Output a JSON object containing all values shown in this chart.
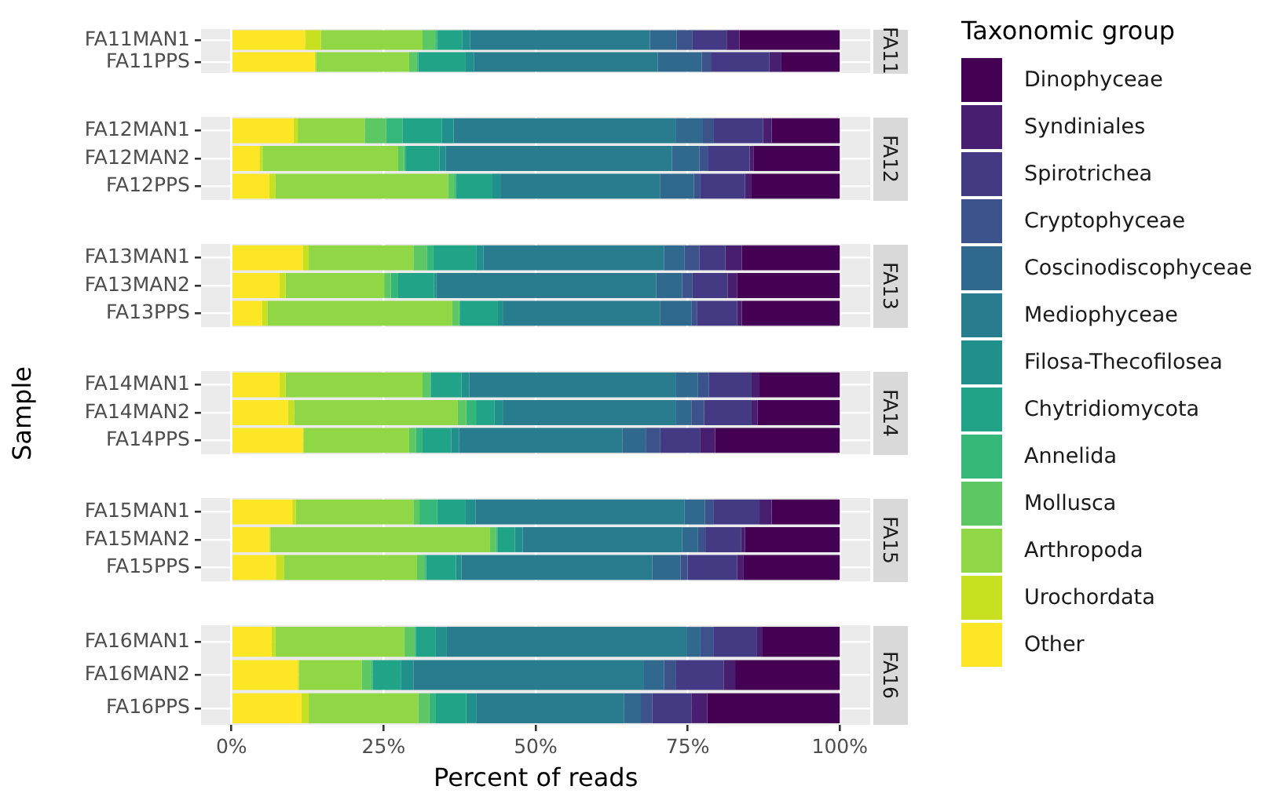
{
  "chart_data": [
    {
      "type": "bar",
      "orientation": "horizontal",
      "stacked": true,
      "title": "FA11",
      "legend": "right",
      "legend_title": "Taxonomic group",
      "grid": true,
      "tick_labels": "y",
      "xlim": [
        -5,
        105
      ],
      "xticks": [
        {
          "value": 0,
          "label": null
        },
        {
          "value": 25,
          "label": null
        },
        {
          "value": 50,
          "label": null
        },
        {
          "value": 75,
          "label": null
        },
        {
          "value": 100,
          "label": null
        }
      ],
      "categories": [
        "FA11MAN1",
        "FA11PPS"
      ],
      "series": [
        {
          "name": "Other",
          "color": "#fde725",
          "values": [
            12.1,
            13.7
          ]
        },
        {
          "name": "Urochordata",
          "color": "#c7e020",
          "values": [
            2.6,
            0.2
          ]
        },
        {
          "name": "Arthropoda",
          "color": "#8fd744",
          "values": [
            16.7,
            15.3
          ]
        },
        {
          "name": "Mollusca",
          "color": "#5dc863",
          "values": [
            2.1,
            1.3
          ]
        },
        {
          "name": "Annelida",
          "color": "#35b779",
          "values": [
            0.3,
            0.2
          ]
        },
        {
          "name": "Chytridiomycota",
          "color": "#20a386",
          "values": [
            4.1,
            7.7
          ]
        },
        {
          "name": "Filosa-Thecofilosea",
          "color": "#21908c",
          "values": [
            1.3,
            1.5
          ]
        },
        {
          "name": "Mediophyceae",
          "color": "#287c8e",
          "values": [
            29.6,
            30.2
          ]
        },
        {
          "name": "Coscinodiscophyceae",
          "color": "#31688e",
          "values": [
            4.4,
            7.2
          ]
        },
        {
          "name": "Cryptophyceae",
          "color": "#3b528b",
          "values": [
            2.6,
            1.5
          ]
        },
        {
          "name": "Spirotrichea",
          "color": "#443a83",
          "values": [
            5.6,
            9.6
          ]
        },
        {
          "name": "Syndiniales",
          "color": "#481f70",
          "values": [
            2.1,
            2.0
          ]
        },
        {
          "name": "Dinophyceae",
          "color": "#440154",
          "values": [
            16.5,
            9.6
          ]
        }
      ]
    },
    {
      "type": "bar",
      "orientation": "horizontal",
      "stacked": true,
      "title": "FA12",
      "grid": true,
      "tick_labels": "y",
      "xlim": [
        -5,
        105
      ],
      "xticks": [
        {
          "value": 0,
          "label": null
        },
        {
          "value": 25,
          "label": null
        },
        {
          "value": 50,
          "label": null
        },
        {
          "value": 75,
          "label": null
        },
        {
          "value": 100,
          "label": null
        }
      ],
      "categories": [
        "FA12MAN1",
        "FA12MAN2",
        "FA12PPS"
      ],
      "series": [
        {
          "color": "#fde725",
          "values": [
            10.2,
            4.6,
            6.2
          ]
        },
        {
          "color": "#c7e020",
          "values": [
            0.7,
            0.5,
            1.0
          ]
        },
        {
          "color": "#8fd744",
          "values": [
            11.0,
            22.3,
            28.4
          ]
        },
        {
          "color": "#5dc863",
          "values": [
            3.5,
            1.0,
            1.1
          ]
        },
        {
          "color": "#35b779",
          "values": [
            2.7,
            0.3,
            0.2
          ]
        },
        {
          "color": "#20a386",
          "values": [
            6.5,
            5.5,
            6.0
          ]
        },
        {
          "color": "#21908c",
          "values": [
            1.9,
            1.0,
            1.3
          ]
        },
        {
          "color": "#287c8e",
          "values": [
            36.5,
            37.2,
            26.3
          ]
        },
        {
          "color": "#31688e",
          "values": [
            4.5,
            4.5,
            5.5
          ]
        },
        {
          "color": "#3b528b",
          "values": [
            1.8,
            1.5,
            1.1
          ]
        },
        {
          "color": "#443a83",
          "values": [
            8.1,
            6.8,
            7.3
          ]
        },
        {
          "color": "#481f70",
          "values": [
            1.4,
            0.6,
            1.1
          ]
        },
        {
          "color": "#440154",
          "values": [
            11.2,
            14.2,
            14.5
          ]
        }
      ]
    },
    {
      "type": "bar",
      "orientation": "horizontal",
      "stacked": true,
      "title": "FA13",
      "grid": true,
      "tick_labels": "y",
      "xlim": [
        -5,
        105
      ],
      "xticks": [
        {
          "value": 0,
          "label": null
        },
        {
          "value": 25,
          "label": null
        },
        {
          "value": 50,
          "label": null
        },
        {
          "value": 75,
          "label": null
        },
        {
          "value": 100,
          "label": null
        }
      ],
      "categories": [
        "FA13MAN1",
        "FA13MAN2",
        "FA13PPS"
      ],
      "series": [
        {
          "color": "#fde725",
          "values": [
            11.7,
            7.9,
            5.0
          ]
        },
        {
          "color": "#c7e020",
          "values": [
            1.0,
            1.0,
            0.9
          ]
        },
        {
          "color": "#8fd744",
          "values": [
            17.2,
            16.2,
            30.4
          ]
        },
        {
          "color": "#5dc863",
          "values": [
            2.2,
            1.1,
            1.1
          ]
        },
        {
          "color": "#35b779",
          "values": [
            1.1,
            1.2,
            0.2
          ]
        },
        {
          "color": "#20a386",
          "values": [
            7.1,
            5.9,
            6.2
          ]
        },
        {
          "color": "#21908c",
          "values": [
            1.1,
            0.4,
            0.8
          ]
        },
        {
          "color": "#287c8e",
          "values": [
            29.7,
            36.1,
            25.9
          ]
        },
        {
          "color": "#31688e",
          "values": [
            3.4,
            4.3,
            5.1
          ]
        },
        {
          "color": "#3b528b",
          "values": [
            2.4,
            1.7,
            0.9
          ]
        },
        {
          "color": "#443a83",
          "values": [
            4.3,
            5.8,
            6.6
          ]
        },
        {
          "color": "#481f70",
          "values": [
            2.7,
            1.5,
            0.8
          ]
        },
        {
          "color": "#440154",
          "values": [
            16.1,
            16.9,
            16.1
          ]
        }
      ]
    },
    {
      "type": "bar",
      "orientation": "horizontal",
      "stacked": true,
      "title": "FA14",
      "ylabel": "Sample",
      "grid": true,
      "tick_labels": "y",
      "xlim": [
        -5,
        105
      ],
      "xticks": [
        {
          "value": 0,
          "label": null
        },
        {
          "value": 25,
          "label": null
        },
        {
          "value": 50,
          "label": null
        },
        {
          "value": 75,
          "label": null
        },
        {
          "value": 100,
          "label": null
        }
      ],
      "categories": [
        "FA14MAN1",
        "FA14MAN2",
        "FA14PPS"
      ],
      "series": [
        {
          "color": "#fde725",
          "values": [
            7.9,
            9.3,
            11.7
          ]
        },
        {
          "color": "#c7e020",
          "values": [
            1.0,
            1.0,
            0.2
          ]
        },
        {
          "color": "#8fd744",
          "values": [
            22.5,
            26.9,
            17.3
          ]
        },
        {
          "color": "#5dc863",
          "values": [
            1.2,
            1.4,
            1.1
          ]
        },
        {
          "color": "#35b779",
          "values": [
            0.2,
            1.6,
            1.1
          ]
        },
        {
          "color": "#20a386",
          "values": [
            5.0,
            3.0,
            4.7
          ]
        },
        {
          "color": "#21908c",
          "values": [
            1.3,
            1.4,
            1.3
          ]
        },
        {
          "color": "#287c8e",
          "values": [
            34.0,
            28.5,
            26.9
          ]
        },
        {
          "color": "#31688e",
          "values": [
            3.6,
            2.5,
            3.8
          ]
        },
        {
          "color": "#3b528b",
          "values": [
            1.8,
            2.1,
            2.4
          ]
        },
        {
          "color": "#443a83",
          "values": [
            7.0,
            7.8,
            6.6
          ]
        },
        {
          "color": "#481f70",
          "values": [
            1.3,
            1.0,
            2.4
          ]
        },
        {
          "color": "#440154",
          "values": [
            13.2,
            13.5,
            20.5
          ]
        }
      ]
    },
    {
      "type": "bar",
      "orientation": "horizontal",
      "stacked": true,
      "title": "FA15",
      "grid": true,
      "tick_labels": "y",
      "xlim": [
        -5,
        105
      ],
      "xticks": [
        {
          "value": 0,
          "label": null
        },
        {
          "value": 25,
          "label": null
        },
        {
          "value": 50,
          "label": null
        },
        {
          "value": 75,
          "label": null
        },
        {
          "value": 100,
          "label": null
        }
      ],
      "categories": [
        "FA15MAN1",
        "FA15MAN2",
        "FA15PPS"
      ],
      "series": [
        {
          "color": "#fde725",
          "values": [
            10.0,
            6.2,
            7.3
          ]
        },
        {
          "color": "#c7e020",
          "values": [
            0.6,
            0.2,
            1.3
          ]
        },
        {
          "color": "#8fd744",
          "values": [
            19.3,
            36.1,
            21.9
          ]
        },
        {
          "color": "#5dc863",
          "values": [
            1.0,
            1.0,
            1.3
          ]
        },
        {
          "color": "#35b779",
          "values": [
            2.9,
            0.2,
            0.2
          ]
        },
        {
          "color": "#20a386",
          "values": [
            4.7,
            2.9,
            4.9
          ]
        },
        {
          "color": "#21908c",
          "values": [
            1.6,
            1.3,
            0.9
          ]
        },
        {
          "color": "#287c8e",
          "values": [
            34.4,
            26.2,
            31.4
          ]
        },
        {
          "color": "#31688e",
          "values": [
            3.3,
            2.6,
            4.6
          ]
        },
        {
          "color": "#3b528b",
          "values": [
            1.4,
            1.2,
            1.2
          ]
        },
        {
          "color": "#443a83",
          "values": [
            7.6,
            5.9,
            8.1
          ]
        },
        {
          "color": "#481f70",
          "values": [
            2.0,
            0.6,
            1.1
          ]
        },
        {
          "color": "#440154",
          "values": [
            11.2,
            15.6,
            15.8
          ]
        }
      ]
    },
    {
      "type": "bar",
      "orientation": "horizontal",
      "stacked": true,
      "title": "FA16",
      "xlabel": "Percent of reads",
      "grid": true,
      "xlim": [
        -5,
        105
      ],
      "xticks": [
        {
          "value": 0,
          "label": "0%"
        },
        {
          "value": 25,
          "label": "25%"
        },
        {
          "value": 50,
          "label": "50%"
        },
        {
          "value": 75,
          "label": "75%"
        },
        {
          "value": 100,
          "label": "100%"
        }
      ],
      "categories": [
        "FA16MAN1",
        "FA16MAN2",
        "FA16PPS"
      ],
      "series": [
        {
          "color": "#fde725",
          "values": [
            6.6,
            10.9,
            11.5
          ]
        },
        {
          "color": "#c7e020",
          "values": [
            0.6,
            0.2,
            1.2
          ]
        },
        {
          "color": "#8fd744",
          "values": [
            21.2,
            10.3,
            18.0
          ]
        },
        {
          "color": "#5dc863",
          "values": [
            1.7,
            1.6,
            1.8
          ]
        },
        {
          "color": "#35b779",
          "values": [
            0.2,
            0.2,
            1.0
          ]
        },
        {
          "color": "#20a386",
          "values": [
            3.2,
            4.7,
            5.1
          ]
        },
        {
          "color": "#21908c",
          "values": [
            1.9,
            2.0,
            1.7
          ]
        },
        {
          "color": "#287c8e",
          "values": [
            39.4,
            37.8,
            24.2
          ]
        },
        {
          "color": "#31688e",
          "values": [
            2.3,
            3.4,
            2.8
          ]
        },
        {
          "color": "#3b528b",
          "values": [
            2.1,
            1.9,
            1.9
          ]
        },
        {
          "color": "#443a83",
          "values": [
            7.1,
            7.9,
            6.4
          ]
        },
        {
          "color": "#481f70",
          "values": [
            0.9,
            1.9,
            2.6
          ]
        },
        {
          "color": "#440154",
          "values": [
            12.8,
            17.2,
            21.8
          ]
        }
      ]
    }
  ]
}
